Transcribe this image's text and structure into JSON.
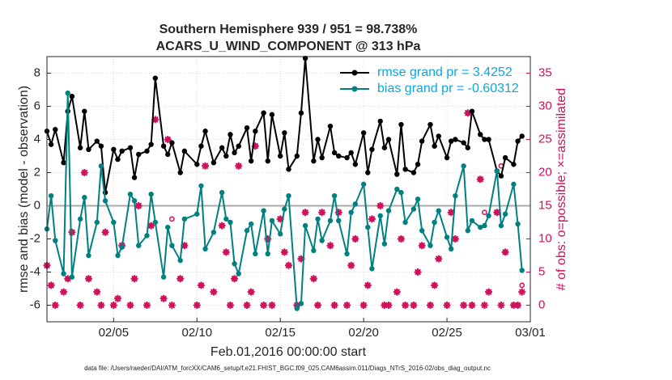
{
  "chart_data": {
    "type": "line",
    "title": "Southern Hemisphere 939 / 951 = 98.738%",
    "subtitle": "ACARS_U_WIND_COMPONENT @ 313 hPa",
    "x_label": "Feb.01,2016 00:00:00 start",
    "y_label": "rmse and bias (model - observation)",
    "y2_label": "# of obs: o=possible; ×=assimilated",
    "footnote": "data file: /Users/raeder/DAI/ATM_forcXX/CAM6_setup/f.e21.FHIST_BGC.f09_025.CAM6assim.011/Diags_NTrS_2016-02/obs_diag_output.nc",
    "xlim": [
      0,
      29
    ],
    "xticks": [
      {
        "value": 4,
        "label": "02/05"
      },
      {
        "value": 9,
        "label": "02/10"
      },
      {
        "value": 14,
        "label": "02/15"
      },
      {
        "value": 19,
        "label": "02/20"
      },
      {
        "value": 24,
        "label": "02/25"
      },
      {
        "value": 29,
        "label": "03/01"
      }
    ],
    "ylim": [
      -7,
      9
    ],
    "yticks": [
      -6,
      -4,
      -2,
      0,
      2,
      4,
      6,
      8
    ],
    "y2lim": [
      -2.5,
      37.5
    ],
    "y2ticks": [
      0,
      5,
      10,
      15,
      20,
      25,
      30,
      35
    ],
    "grid": true,
    "legend": "upper right",
    "x": [
      0,
      0.25,
      0.5,
      1,
      1.25,
      1.5,
      2,
      2.25,
      2.5,
      3,
      3.25,
      3.5,
      4,
      4.25,
      4.5,
      5,
      5.25,
      5.5,
      6,
      6.25,
      6.5,
      7,
      7.25,
      7.5,
      8,
      8.25,
      9,
      9.25,
      9.5,
      10,
      10.5,
      10.75,
      11,
      11.25,
      11.5,
      12,
      12.25,
      12.5,
      13,
      13.25,
      13.5,
      14,
      14.25,
      14.5,
      15,
      15.25,
      15.5,
      16,
      16.25,
      16.5,
      17,
      17.25,
      17.5,
      18,
      18.25,
      18.5,
      19,
      19.25,
      19.5,
      20,
      20.25,
      20.5,
      21,
      21.25,
      21.5,
      22,
      22.25,
      22.5,
      23,
      23.25,
      23.5,
      24,
      24.25,
      24.5,
      25,
      25.25,
      25.5,
      26,
      26.25,
      26.5,
      27,
      27.25,
      27.5,
      28,
      28.25,
      28.5
    ],
    "series": [
      {
        "name": "rmse grand pr = 3.4252",
        "color": "#000000",
        "marker": "dot",
        "values": [
          4.5,
          3.7,
          4.6,
          2.6,
          5.7,
          6.6,
          3.5,
          5.7,
          3.4,
          3.9,
          3.6,
          0.8,
          3.4,
          2.8,
          3.3,
          3.5,
          1.7,
          3.1,
          3.3,
          3.7,
          7.7,
          3.6,
          3.1,
          3.8,
          2.0,
          3.3,
          2.5,
          3.6,
          4.5,
          2.6,
          3.5,
          3.0,
          4.3,
          3.2,
          3.6,
          4.7,
          2.7,
          4.5,
          5.6,
          2.7,
          5.5,
          3.0,
          4.4,
          2.2,
          3.0,
          5.6,
          8.9,
          2.7,
          4.0,
          2.9,
          4.8,
          3.2,
          3.0,
          2.9,
          3.2,
          2.5,
          4.4,
          2.0,
          3.4,
          5.1,
          3.5,
          4.0,
          1.9,
          4.9,
          2.2,
          2.0,
          2.5,
          3.9,
          4.9,
          3.6,
          4.2,
          2.9,
          3.9,
          4.0,
          3.8,
          3.5,
          5.7,
          4.3,
          4.0,
          4.0,
          2.1,
          1.8,
          2.9,
          2.5,
          3.9,
          4.2
        ]
      },
      {
        "name": "bias grand pr = -0.60312",
        "color": "#008080",
        "marker": "dot",
        "values": [
          -1.4,
          0.6,
          -2.1,
          -4.1,
          6.8,
          -4.3,
          -0.8,
          0.5,
          -3.0,
          -1.0,
          2.4,
          0.3,
          -1.0,
          -3.0,
          -2.5,
          0.7,
          0.3,
          -2.4,
          -1.8,
          0.7,
          -1.0,
          -4.3,
          -1.3,
          -2.4,
          -3.3,
          -0.8,
          -0.5,
          1.2,
          -2.6,
          -1.6,
          0.8,
          -0.8,
          -1.0,
          -3.5,
          -4.1,
          -1.5,
          -1.1,
          -2.9,
          -0.3,
          -2.9,
          -0.9,
          -1.7,
          -0.2,
          0.6,
          -6.2,
          -5.9,
          -1.2,
          -2.7,
          -0.8,
          -2.1,
          -0.9,
          0.6,
          -0.9,
          -2.9,
          -0.4,
          0.1,
          1.3,
          -1.3,
          -3.8,
          -0.6,
          -2.3,
          -0.3,
          1.0,
          0.8,
          -1.0,
          -0.2,
          0.4,
          -1.5,
          -2.4,
          -1.0,
          -0.3,
          -1.9,
          -2.6,
          0.6,
          2.4,
          -1.5,
          -0.9,
          -1.3,
          -1.2,
          -0.6,
          2.1,
          -1.2,
          -0.5,
          1.3,
          -1.1,
          -3.9
        ]
      },
      {
        "color": "#d0105a",
        "marker": "circle",
        "axis": "y2",
        "values": [
          6,
          3,
          0,
          2,
          4,
          11,
          0,
          20,
          4,
          2,
          0,
          11,
          0,
          1,
          9,
          0,
          4,
          15,
          0,
          12,
          28,
          1,
          25,
          13,
          4,
          9,
          0,
          3,
          21,
          2,
          12,
          8,
          0,
          4,
          21,
          0,
          2,
          24,
          0,
          10,
          0,
          13,
          8,
          6,
          0,
          7,
          14,
          4,
          0,
          14,
          9,
          0,
          14,
          0,
          6,
          10,
          0,
          3,
          13,
          15,
          0,
          0,
          2,
          10,
          0,
          0,
          5,
          9,
          0,
          3,
          7,
          0,
          14,
          10,
          0,
          29,
          0,
          19,
          14,
          2,
          14,
          21,
          8,
          0,
          0,
          3
        ]
      },
      {
        "color": "#d0105a",
        "marker": "star",
        "axis": "y2",
        "values": [
          6,
          3,
          0,
          2,
          4,
          11,
          0,
          20,
          4,
          2,
          0,
          11,
          0,
          1,
          9,
          0,
          4,
          15,
          0,
          12,
          28,
          1,
          25,
          0,
          4,
          9,
          0,
          3,
          21,
          2,
          12,
          8,
          0,
          4,
          21,
          0,
          2,
          24,
          0,
          10,
          0,
          13,
          8,
          6,
          0,
          7,
          14,
          4,
          0,
          14,
          9,
          0,
          14,
          0,
          6,
          10,
          0,
          3,
          13,
          15,
          0,
          0,
          2,
          10,
          0,
          0,
          5,
          9,
          0,
          3,
          7,
          0,
          14,
          10,
          0,
          29,
          0,
          19,
          0,
          2,
          14,
          0,
          8,
          0,
          0,
          2
        ]
      }
    ]
  }
}
